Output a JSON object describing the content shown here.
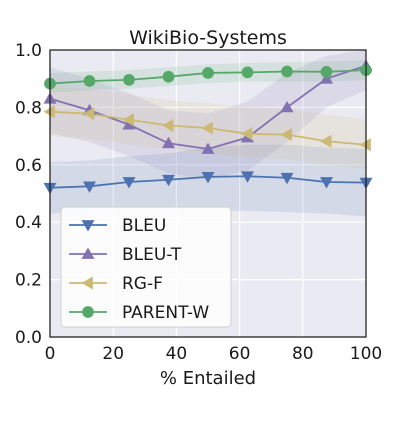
{
  "chart_data": {
    "type": "line",
    "title": "WikiBio-Systems",
    "xlabel": "% Entailed",
    "ylabel": "",
    "xlim": [
      0,
      100
    ],
    "ylim": [
      0.0,
      1.0
    ],
    "xticks": [
      0,
      20,
      40,
      60,
      80,
      100
    ],
    "yticks": [
      0.0,
      0.2,
      0.4,
      0.6,
      0.8,
      1.0
    ],
    "xtick_labels": [
      "0",
      "20",
      "40",
      "60",
      "80",
      "100"
    ],
    "ytick_labels": [
      "0.0",
      "0.2",
      "0.4",
      "0.6",
      "0.8",
      "1.0"
    ],
    "grid": true,
    "legend_position": "lower-left",
    "x": [
      0,
      12.5,
      25,
      37.5,
      50,
      62.5,
      75,
      87.5,
      100
    ],
    "series": [
      {
        "name": "BLEU",
        "color": "#4c72b0",
        "marker": "triangle-down",
        "values": [
          0.52,
          0.525,
          0.54,
          0.548,
          0.558,
          0.56,
          0.555,
          0.54,
          0.538
        ],
        "band_lower": [
          0.43,
          0.435,
          0.44,
          0.44,
          0.44,
          0.44,
          0.435,
          0.43,
          0.42
        ],
        "band_upper": [
          0.61,
          0.615,
          0.63,
          0.64,
          0.66,
          0.67,
          0.67,
          0.66,
          0.655
        ]
      },
      {
        "name": "BLEU-T",
        "color": "#8172b2",
        "marker": "triangle-up",
        "values": [
          0.83,
          0.79,
          0.74,
          0.675,
          0.655,
          0.695,
          0.8,
          0.9,
          0.945
        ],
        "band_lower": [
          0.71,
          0.68,
          0.63,
          0.57,
          0.55,
          0.58,
          0.68,
          0.8,
          0.86
        ],
        "band_upper": [
          0.94,
          0.9,
          0.85,
          0.79,
          0.78,
          0.82,
          0.92,
          0.98,
          1.0
        ]
      },
      {
        "name": "RG-F",
        "color": "#ccb974",
        "marker": "triangle-left",
        "values": [
          0.785,
          0.778,
          0.757,
          0.737,
          0.728,
          0.708,
          0.705,
          0.682,
          0.67
        ],
        "band_lower": [
          0.7,
          0.69,
          0.67,
          0.655,
          0.64,
          0.625,
          0.62,
          0.6,
          0.585
        ],
        "band_upper": [
          0.87,
          0.865,
          0.845,
          0.825,
          0.815,
          0.8,
          0.795,
          0.775,
          0.76
        ]
      },
      {
        "name": "PARENT-W",
        "color": "#55a868",
        "marker": "circle",
        "values": [
          0.883,
          0.892,
          0.896,
          0.907,
          0.92,
          0.922,
          0.925,
          0.924,
          0.93
        ],
        "band_lower": [
          0.85,
          0.86,
          0.865,
          0.875,
          0.885,
          0.89,
          0.89,
          0.89,
          0.895
        ],
        "band_upper": [
          0.92,
          0.925,
          0.93,
          0.94,
          0.95,
          0.955,
          0.958,
          0.96,
          0.965
        ]
      }
    ]
  }
}
